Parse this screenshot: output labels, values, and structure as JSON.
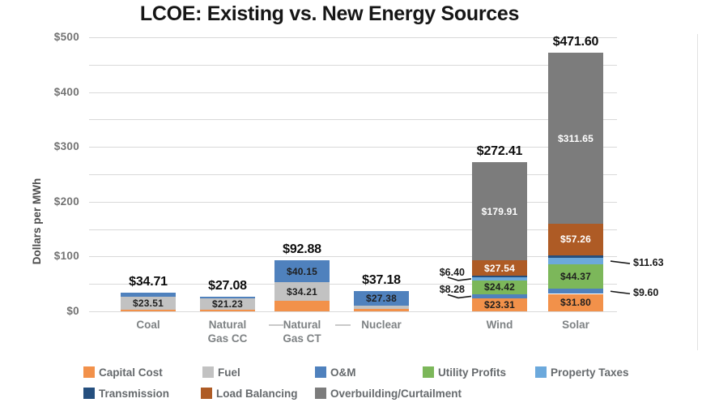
{
  "chart_data": {
    "type": "bar",
    "stacked": true,
    "title": "LCOE: Existing vs. New Energy Sources",
    "ylabel": "Dollars per MWh",
    "ylim": [
      0,
      500
    ],
    "gridline_step": 50,
    "yticks": [
      {
        "value": 0,
        "label": "$0"
      },
      {
        "value": 100,
        "label": "$100"
      },
      {
        "value": 200,
        "label": "$200"
      },
      {
        "value": 300,
        "label": "$300"
      },
      {
        "value": 400,
        "label": "$400"
      },
      {
        "value": 500,
        "label": "$500"
      }
    ],
    "series": [
      {
        "key": "capital_cost",
        "name": "Capital Cost",
        "color": "#F2914A"
      },
      {
        "key": "fuel",
        "name": "Fuel",
        "color": "#C2C2C2"
      },
      {
        "key": "om",
        "name": "O&M",
        "color": "#4F81BD"
      },
      {
        "key": "utility_profits",
        "name": "Utility Profits",
        "color": "#7CB75A"
      },
      {
        "key": "property_taxes",
        "name": "Property Taxes",
        "color": "#6CA9DC"
      },
      {
        "key": "transmission",
        "name": "Transmission",
        "color": "#254F7E"
      },
      {
        "key": "load_balancing",
        "name": "Load Balancing",
        "color": "#AE5B25"
      },
      {
        "key": "overbuilding",
        "name": "Overbuilding/Curtailment",
        "color": "#7C7C7C"
      }
    ],
    "legend_rows": [
      [
        "capital_cost",
        "fuel",
        "om",
        "utility_profits",
        "property_taxes"
      ],
      [
        "transmission",
        "load_balancing",
        "overbuilding"
      ]
    ],
    "categories": [
      {
        "name": "Coal",
        "label_lines": [
          "Coal"
        ],
        "total": 34.71,
        "total_label": "$34.71",
        "segments": [
          {
            "series": "capital_cost",
            "value": 3.5
          },
          {
            "series": "fuel",
            "value": 23.51,
            "label": "$23.51",
            "label_style": "dark"
          },
          {
            "series": "om",
            "value": 7.7
          }
        ]
      },
      {
        "name": "Natural Gas CC",
        "label_lines": [
          "Natural",
          "Gas CC"
        ],
        "total": 27.08,
        "total_label": "$27.08",
        "segments": [
          {
            "series": "capital_cost",
            "value": 2.3
          },
          {
            "series": "fuel",
            "value": 21.23,
            "label": "$21.23",
            "label_style": "dark"
          },
          {
            "series": "om",
            "value": 3.55
          }
        ]
      },
      {
        "name": "Natural Gas CT",
        "label_lines": [
          "Natural",
          "Gas CT"
        ],
        "total": 92.88,
        "total_label": "$92.88",
        "segments": [
          {
            "series": "capital_cost",
            "value": 18.52
          },
          {
            "series": "fuel",
            "value": 34.21,
            "label": "$34.21",
            "label_style": "dark"
          },
          {
            "series": "om",
            "value": 40.15,
            "label": "$40.15",
            "label_style": "dark"
          }
        ]
      },
      {
        "name": "Nuclear",
        "label_lines": [
          "Nuclear"
        ],
        "total": 37.18,
        "total_label": "$37.18",
        "segments": [
          {
            "series": "capital_cost",
            "value": 4.3
          },
          {
            "series": "fuel",
            "value": 5.5
          },
          {
            "series": "om",
            "value": 27.38,
            "label": "$27.38",
            "label_style": "dark"
          }
        ]
      },
      {
        "name": "Wind",
        "label_lines": [
          "Wind"
        ],
        "total": 272.41,
        "total_label": "$272.41",
        "segments": [
          {
            "series": "capital_cost",
            "value": 23.31,
            "label": "$23.31",
            "label_style": "dark"
          },
          {
            "series": "om",
            "value": 8.28,
            "callout": {
              "side": "left",
              "label": "$8.28"
            }
          },
          {
            "series": "utility_profits",
            "value": 24.42,
            "label": "$24.42",
            "label_style": "dark"
          },
          {
            "series": "property_taxes",
            "value": 6.4,
            "callout": {
              "side": "left",
              "label": "$6.40"
            }
          },
          {
            "series": "transmission",
            "value": 2.55
          },
          {
            "series": "load_balancing",
            "value": 27.54,
            "label": "$27.54",
            "label_style": "light"
          },
          {
            "series": "overbuilding",
            "value": 179.91,
            "label": "$179.91",
            "label_style": "light"
          }
        ]
      },
      {
        "name": "Solar",
        "label_lines": [
          "Solar"
        ],
        "total": 471.6,
        "total_label": "$471.60",
        "segments": [
          {
            "series": "capital_cost",
            "value": 31.8,
            "label": "$31.80",
            "label_style": "dark"
          },
          {
            "series": "om",
            "value": 9.6,
            "callout": {
              "side": "right",
              "label": "$9.60"
            }
          },
          {
            "series": "utility_profits",
            "value": 44.37,
            "label": "$44.37",
            "label_style": "dark"
          },
          {
            "series": "property_taxes",
            "value": 11.63,
            "callout": {
              "side": "right",
              "label": "$11.63"
            }
          },
          {
            "series": "transmission",
            "value": 5.29
          },
          {
            "series": "load_balancing",
            "value": 57.26,
            "label": "$57.26",
            "label_style": "light"
          },
          {
            "series": "overbuilding",
            "value": 311.65,
            "label": "$311.65",
            "label_style": "light"
          }
        ]
      }
    ]
  }
}
